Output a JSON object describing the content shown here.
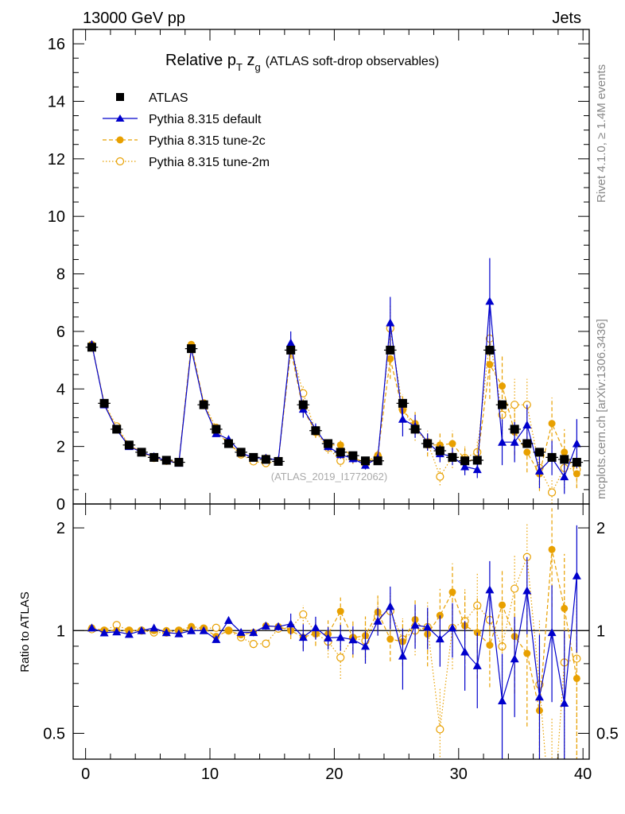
{
  "header": {
    "left": "13000 GeV pp",
    "right": "Jets"
  },
  "side": {
    "rivet": "Rivet 4.1.0, ≥ 1.4M events",
    "mcplots": "mcplots.cern.ch [arXiv:1306.3436]"
  },
  "colors": {
    "atlas": "#000000",
    "default": "#0000cc",
    "tune2c": "#e8a000",
    "tune2m": "#e8a000"
  },
  "chart_data": {
    "type": "line",
    "title": "Relative pT zg (ATLAS soft-drop observables)",
    "title_main": "Relative p",
    "title_sub": "T",
    "title_z": " z",
    "title_zsub": "g",
    "title_tail": "(ATLAS soft-drop observables)",
    "analysis_label": "(ATLAS_2019_I1772062)",
    "xlim": [
      -1,
      40.5
    ],
    "ylim_main": [
      0,
      16.5
    ],
    "ylim_ratio": [
      0.42,
      2.35
    ],
    "ratio_ylabel": "Ratio to ATLAS",
    "x_ticks": [
      "0",
      "10",
      "20",
      "30",
      "40"
    ],
    "y_ticks_main": [
      "0",
      "2",
      "4",
      "6",
      "8",
      "10",
      "12",
      "14",
      "16"
    ],
    "y_ticks_ratio": [
      "0.5",
      "1",
      "2"
    ],
    "x": [
      0.5,
      1.5,
      2.5,
      3.5,
      4.5,
      5.5,
      6.5,
      7.5,
      8.5,
      9.5,
      10.5,
      11.5,
      12.5,
      13.5,
      14.5,
      15.5,
      16.5,
      17.5,
      18.5,
      19.5,
      20.5,
      21.5,
      22.5,
      23.5,
      24.5,
      25.5,
      26.5,
      27.5,
      28.5,
      29.5,
      30.5,
      31.5,
      32.5,
      33.5,
      34.5,
      35.5,
      36.5,
      37.5,
      38.5,
      39.5
    ],
    "series": [
      {
        "name": "ATLAS",
        "style": "data",
        "values": [
          5.45,
          3.5,
          2.6,
          2.05,
          1.8,
          1.62,
          1.52,
          1.45,
          5.4,
          3.45,
          2.6,
          2.1,
          1.8,
          1.62,
          1.55,
          1.48,
          5.35,
          3.45,
          2.55,
          2.1,
          1.8,
          1.68,
          1.5,
          1.5,
          5.35,
          3.5,
          2.6,
          2.1,
          1.85,
          1.62,
          1.5,
          1.52,
          5.35,
          3.45,
          2.6,
          2.1,
          1.8,
          1.62,
          1.55,
          1.45
        ],
        "errors": [
          0.1,
          0.07,
          0.05,
          0.04,
          0.04,
          0.03,
          0.03,
          0.03,
          0.1,
          0.07,
          0.05,
          0.04,
          0.04,
          0.03,
          0.03,
          0.03,
          0.1,
          0.07,
          0.05,
          0.04,
          0.04,
          0.04,
          0.04,
          0.04,
          0.15,
          0.1,
          0.08,
          0.07,
          0.07,
          0.07,
          0.07,
          0.07,
          0.2,
          0.15,
          0.12,
          0.12,
          0.12,
          0.12,
          0.12,
          0.12
        ]
      },
      {
        "name": "Pythia 8.315 default",
        "style": "solid",
        "values": [
          5.55,
          3.45,
          2.58,
          2.0,
          1.8,
          1.65,
          1.5,
          1.42,
          5.4,
          3.45,
          2.45,
          2.25,
          1.78,
          1.6,
          1.6,
          1.52,
          5.6,
          3.3,
          2.6,
          2.0,
          1.72,
          1.58,
          1.35,
          1.6,
          6.3,
          2.95,
          2.7,
          2.15,
          1.75,
          1.65,
          1.3,
          1.2,
          7.05,
          2.15,
          2.15,
          2.75,
          1.15,
          1.6,
          0.95,
          2.1
        ],
        "errors": [
          0.06,
          0.05,
          0.04,
          0.03,
          0.03,
          0.03,
          0.03,
          0.03,
          0.06,
          0.05,
          0.04,
          0.04,
          0.04,
          0.04,
          0.04,
          0.04,
          0.4,
          0.3,
          0.2,
          0.15,
          0.15,
          0.15,
          0.15,
          0.15,
          0.9,
          0.6,
          0.4,
          0.3,
          0.3,
          0.3,
          0.3,
          0.3,
          1.5,
          0.8,
          0.7,
          0.7,
          0.6,
          0.6,
          0.6,
          0.85
        ]
      },
      {
        "name": "Pythia 8.315 tune-2c",
        "style": "dashed",
        "values": [
          5.55,
          3.5,
          2.6,
          2.05,
          1.8,
          1.62,
          1.52,
          1.45,
          5.55,
          3.5,
          2.5,
          2.1,
          1.75,
          1.6,
          1.6,
          1.52,
          5.35,
          3.3,
          2.5,
          2.05,
          2.05,
          1.6,
          1.45,
          1.7,
          5.05,
          3.25,
          2.8,
          2.05,
          2.05,
          2.1,
          1.55,
          1.5,
          4.85,
          4.1,
          2.5,
          1.8,
          1.05,
          2.8,
          1.8,
          1.05
        ],
        "errors": [
          0.06,
          0.05,
          0.04,
          0.03,
          0.03,
          0.03,
          0.03,
          0.03,
          0.06,
          0.05,
          0.04,
          0.04,
          0.04,
          0.04,
          0.04,
          0.04,
          0.3,
          0.25,
          0.2,
          0.2,
          0.2,
          0.2,
          0.2,
          0.2,
          0.7,
          0.5,
          0.4,
          0.4,
          0.4,
          0.45,
          0.4,
          0.4,
          1.2,
          1.1,
          0.8,
          0.7,
          0.6,
          0.9,
          0.8,
          0.5
        ]
      },
      {
        "name": "Pythia 8.315 tune-2m",
        "style": "dotted",
        "values": [
          5.5,
          3.5,
          2.7,
          2.05,
          1.8,
          1.6,
          1.5,
          1.45,
          5.45,
          3.5,
          2.65,
          2.1,
          1.72,
          1.48,
          1.42,
          1.5,
          5.45,
          3.85,
          2.5,
          1.95,
          1.5,
          1.6,
          1.4,
          1.65,
          6.1,
          3.3,
          2.6,
          2.15,
          0.95,
          1.65,
          1.6,
          1.8,
          5.75,
          3.1,
          3.45,
          3.45,
          1.25,
          0.4,
          1.25,
          1.2
        ],
        "errors": [
          0.06,
          0.05,
          0.04,
          0.03,
          0.03,
          0.03,
          0.03,
          0.03,
          0.06,
          0.05,
          0.04,
          0.04,
          0.04,
          0.04,
          0.04,
          0.04,
          0.3,
          0.25,
          0.2,
          0.2,
          0.2,
          0.2,
          0.2,
          0.2,
          0.8,
          0.5,
          0.4,
          0.4,
          0.3,
          0.4,
          0.4,
          0.45,
          1.3,
          1.0,
          0.9,
          0.9,
          0.7,
          0.5,
          0.7,
          0.6
        ]
      }
    ]
  }
}
